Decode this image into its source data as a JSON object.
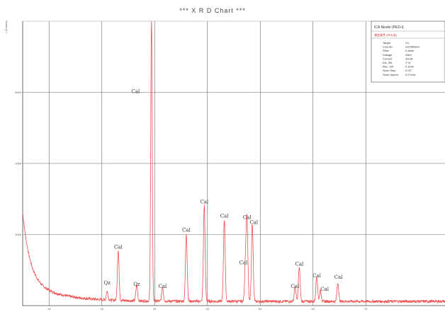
{
  "chart_data": {
    "type": "line",
    "title": "*** X R D Chart ***",
    "ylabel": "I (Counts)",
    "xlim": [
      5,
      85
    ],
    "ylim": [
      0,
      4000
    ],
    "x_ticks": [
      "10",
      "20",
      "30",
      "40",
      "50",
      "60",
      "70"
    ],
    "y_ticks": [
      "1000",
      "2000",
      "3000"
    ],
    "grid": true,
    "color": "#f05050",
    "peaks": [
      {
        "x": 21.0,
        "y": 120,
        "label": "Qz",
        "lx": 21.0,
        "ly": 300
      },
      {
        "x": 23.1,
        "y": 700,
        "label": "Cal",
        "lx": 23.1,
        "ly": 800
      },
      {
        "x": 26.6,
        "y": 220,
        "label": "Qz",
        "lx": 26.6,
        "ly": 280
      },
      {
        "x": 29.4,
        "y": 4000,
        "label": "Cal",
        "lx": 26.4,
        "ly": 2990
      },
      {
        "x": 31.5,
        "y": 200,
        "label": "Cal",
        "lx": 31.5,
        "ly": 250
      },
      {
        "x": 36.0,
        "y": 950,
        "label": "Cal",
        "lx": 36.0,
        "ly": 1040
      },
      {
        "x": 39.4,
        "y": 1350,
        "label": "Cal",
        "lx": 39.4,
        "ly": 1440
      },
      {
        "x": 43.2,
        "y": 1150,
        "label": "Cal",
        "lx": 43.2,
        "ly": 1240
      },
      {
        "x": 47.2,
        "y": 520,
        "label": "Cal",
        "lx": 46.8,
        "ly": 580
      },
      {
        "x": 47.5,
        "y": 1130,
        "label": "Cal",
        "lx": 47.5,
        "ly": 1220
      },
      {
        "x": 48.5,
        "y": 1100,
        "label": "Cal",
        "lx": 48.8,
        "ly": 1150
      },
      {
        "x": 56.6,
        "y": 200,
        "label": "Cal",
        "lx": 56.6,
        "ly": 250
      },
      {
        "x": 57.4,
        "y": 480,
        "label": "Cal",
        "lx": 57.4,
        "ly": 560
      },
      {
        "x": 60.7,
        "y": 350,
        "label": "Cal",
        "lx": 60.7,
        "ly": 400
      },
      {
        "x": 61.4,
        "y": 150,
        "label": "Cal",
        "lx": 62.2,
        "ly": 210
      },
      {
        "x": 64.7,
        "y": 260,
        "label": "Cal",
        "lx": 64.8,
        "ly": 380
      }
    ],
    "info_box": {
      "title": "ICA Nestle (PED-I)",
      "subtitle": "測定条件 (PED法)",
      "rows": [
        [
          "Target",
          "Cu"
        ],
        [
          "Counter",
          "Scintillation"
        ],
        [
          "Filter",
          "K-beta"
        ],
        [
          "Voltage",
          "40kV"
        ],
        [
          "Current",
          "30mA"
        ],
        [
          "Div. Slit",
          "1°/4"
        ],
        [
          "Rec. Slit",
          "0.3mm"
        ],
        [
          "Scan Step",
          "0.02°"
        ],
        [
          "Scan Speed",
          "2.0°/min"
        ]
      ]
    }
  }
}
